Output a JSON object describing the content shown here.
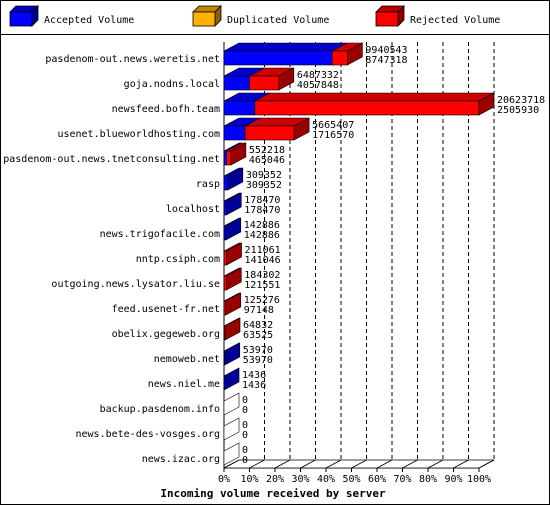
{
  "colors": {
    "accepted": "#0000ff",
    "duplicated": "#ffb300",
    "rejected": "#ff0000"
  },
  "legend": [
    {
      "key": "accepted",
      "label": "Accepted Volume"
    },
    {
      "key": "duplicated",
      "label": "Duplicated Volume"
    },
    {
      "key": "rejected",
      "label": "Rejected Volume"
    }
  ],
  "chart_data": {
    "type": "bar",
    "orientation": "horizontal",
    "stacked": true,
    "xlabel": "Incoming volume received by server",
    "xlim": [
      0,
      100
    ],
    "xticks": [
      "0%",
      "10%",
      "20%",
      "30%",
      "40%",
      "50%",
      "60%",
      "70%",
      "80%",
      "90%",
      "100%"
    ],
    "grid": "vertical dashed",
    "legend_position": "top",
    "categories": [
      "pasdenom-out.news.weretis.net",
      "goja.nodns.local",
      "newsfeed.bofh.team",
      "usenet.blueworldhosting.com",
      "pasdenom-out.news.tnetconsulting.net",
      "rasp",
      "localhost",
      "news.trigofacile.com",
      "nntp.csiph.com",
      "outgoing.news.lysator.liu.se",
      "feed.usenet-fr.net",
      "obelix.gegeweb.org",
      "nemoweb.net",
      "news.niel.me",
      "backup.pasdenom.info",
      "news.bete-des-vosges.org",
      "news.izac.org"
    ],
    "series": [
      {
        "name": "Accepted Volume",
        "key": "accepted",
        "values": [
          42.4,
          10.0,
          12.1,
          8.3,
          1.0,
          1.5,
          0.9,
          0.7,
          0.0,
          0.0,
          0.0,
          0.0,
          0.3,
          0.01,
          0,
          0,
          0
        ]
      },
      {
        "name": "Duplicated Volume",
        "key": "duplicated",
        "values": [
          0,
          0,
          0,
          0,
          0,
          0,
          0,
          0,
          0,
          0,
          0,
          0,
          0,
          0,
          0,
          0,
          0
        ]
      },
      {
        "name": "Rejected Volume",
        "key": "rejected",
        "values": [
          6.0,
          11.5,
          87.9,
          19.2,
          1.7,
          0,
          0,
          0,
          1.0,
          0.9,
          0.7,
          0.4,
          0,
          0,
          0,
          0,
          0
        ]
      }
    ],
    "value_labels": [
      [
        "9940543",
        "8747318"
      ],
      [
        "6487332",
        "4057848"
      ],
      [
        "20623718",
        "2505930"
      ],
      [
        "5665407",
        "1716570"
      ],
      [
        "552218",
        "465046"
      ],
      [
        "309352",
        "309352"
      ],
      [
        "178470",
        "178470"
      ],
      [
        "142886",
        "142886"
      ],
      [
        "211061",
        "141046"
      ],
      [
        "184302",
        "121551"
      ],
      [
        "125276",
        "97148"
      ],
      [
        "64832",
        "63525"
      ],
      [
        "53970",
        "53970"
      ],
      [
        "1436",
        "1436"
      ],
      [
        "0",
        "0"
      ],
      [
        "0",
        "0"
      ],
      [
        "0",
        "0"
      ]
    ]
  }
}
